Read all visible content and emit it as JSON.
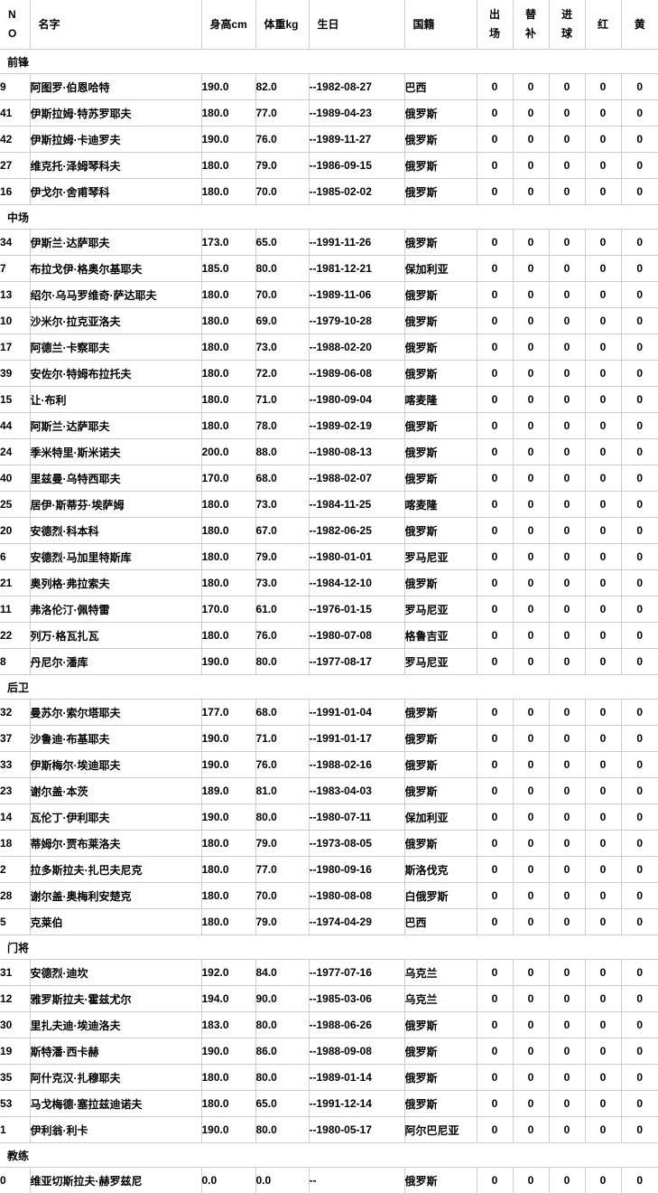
{
  "colors": {
    "background": "#ffffff",
    "text": "#000000",
    "grid_border": "#cccccc"
  },
  "table": {
    "columns": [
      {
        "key": "no",
        "label": "NO",
        "lines": [
          "N",
          "O"
        ],
        "align": "left"
      },
      {
        "key": "name",
        "label": "名字",
        "lines": [
          "名字"
        ],
        "align": "left"
      },
      {
        "key": "height",
        "label": "身高cm",
        "lines": [
          "身高cm"
        ],
        "align": "left"
      },
      {
        "key": "weight",
        "label": "体重kg",
        "lines": [
          "体重kg"
        ],
        "align": "left"
      },
      {
        "key": "birthday",
        "label": "生日",
        "lines": [
          "生日"
        ],
        "align": "left"
      },
      {
        "key": "nationality",
        "label": "国籍",
        "lines": [
          "国籍"
        ],
        "align": "left"
      },
      {
        "key": "appearances",
        "label": "出场",
        "lines": [
          "出",
          "场"
        ],
        "align": "center"
      },
      {
        "key": "substitute",
        "label": "替补",
        "lines": [
          "替",
          "补"
        ],
        "align": "center"
      },
      {
        "key": "goals",
        "label": "进球",
        "lines": [
          "进",
          "球"
        ],
        "align": "center"
      },
      {
        "key": "red",
        "label": "红",
        "lines": [
          "红"
        ],
        "align": "center"
      },
      {
        "key": "yellow",
        "label": "黄",
        "lines": [
          "黄"
        ],
        "align": "center"
      }
    ],
    "sections": [
      {
        "key": "forwards",
        "label": "前锋",
        "rows": [
          [
            "9",
            "阿图罗·伯恩哈特",
            "190.0",
            "82.0",
            "--1982-08-27",
            "巴西",
            "0",
            "0",
            "0",
            "0",
            "0"
          ],
          [
            "41",
            "伊斯拉姆·特苏罗耶夫",
            "180.0",
            "77.0",
            "--1989-04-23",
            "俄罗斯",
            "0",
            "0",
            "0",
            "0",
            "0"
          ],
          [
            "42",
            "伊斯拉姆·卡迪罗夫",
            "190.0",
            "76.0",
            "--1989-11-27",
            "俄罗斯",
            "0",
            "0",
            "0",
            "0",
            "0"
          ],
          [
            "27",
            "维克托·泽姆琴科夫",
            "180.0",
            "79.0",
            "--1986-09-15",
            "俄罗斯",
            "0",
            "0",
            "0",
            "0",
            "0"
          ],
          [
            "16",
            "伊戈尔·舍甫琴科",
            "180.0",
            "70.0",
            "--1985-02-02",
            "俄罗斯",
            "0",
            "0",
            "0",
            "0",
            "0"
          ]
        ]
      },
      {
        "key": "midfielders",
        "label": "中场",
        "rows": [
          [
            "34",
            "伊斯兰·达萨耶夫",
            "173.0",
            "65.0",
            "--1991-11-26",
            "俄罗斯",
            "0",
            "0",
            "0",
            "0",
            "0"
          ],
          [
            "7",
            "布拉戈伊·格奥尔基耶夫",
            "185.0",
            "80.0",
            "--1981-12-21",
            "保加利亚",
            "0",
            "0",
            "0",
            "0",
            "0"
          ],
          [
            "13",
            "绍尔·乌马罗维奇·萨达耶夫",
            "180.0",
            "70.0",
            "--1989-11-06",
            "俄罗斯",
            "0",
            "0",
            "0",
            "0",
            "0"
          ],
          [
            "10",
            "沙米尔·拉克亚洛夫",
            "180.0",
            "69.0",
            "--1979-10-28",
            "俄罗斯",
            "0",
            "0",
            "0",
            "0",
            "0"
          ],
          [
            "17",
            "阿德兰·卡察耶夫",
            "180.0",
            "73.0",
            "--1988-02-20",
            "俄罗斯",
            "0",
            "0",
            "0",
            "0",
            "0"
          ],
          [
            "39",
            "安佐尔·特姆布拉托夫",
            "180.0",
            "72.0",
            "--1989-06-08",
            "俄罗斯",
            "0",
            "0",
            "0",
            "0",
            "0"
          ],
          [
            "15",
            "让·布利",
            "180.0",
            "71.0",
            "--1980-09-04",
            "喀麦隆",
            "0",
            "0",
            "0",
            "0",
            "0"
          ],
          [
            "44",
            "阿斯兰·达萨耶夫",
            "180.0",
            "78.0",
            "--1989-02-19",
            "俄罗斯",
            "0",
            "0",
            "0",
            "0",
            "0"
          ],
          [
            "24",
            "季米特里·斯米诺夫",
            "200.0",
            "88.0",
            "--1980-08-13",
            "俄罗斯",
            "0",
            "0",
            "0",
            "0",
            "0"
          ],
          [
            "40",
            "里兹曼·乌特西耶夫",
            "170.0",
            "68.0",
            "--1988-02-07",
            "俄罗斯",
            "0",
            "0",
            "0",
            "0",
            "0"
          ],
          [
            "25",
            "居伊·斯蒂芬·埃萨姆",
            "180.0",
            "73.0",
            "--1984-11-25",
            "喀麦隆",
            "0",
            "0",
            "0",
            "0",
            "0"
          ],
          [
            "20",
            "安德烈·科本科",
            "180.0",
            "67.0",
            "--1982-06-25",
            "俄罗斯",
            "0",
            "0",
            "0",
            "0",
            "0"
          ],
          [
            "6",
            "安德烈·马加里特斯库",
            "180.0",
            "79.0",
            "--1980-01-01",
            "罗马尼亚",
            "0",
            "0",
            "0",
            "0",
            "0"
          ],
          [
            "21",
            "奥列格·弗拉索夫",
            "180.0",
            "73.0",
            "--1984-12-10",
            "俄罗斯",
            "0",
            "0",
            "0",
            "0",
            "0"
          ],
          [
            "11",
            "弗洛伦汀·佩特雷",
            "170.0",
            "61.0",
            "--1976-01-15",
            "罗马尼亚",
            "0",
            "0",
            "0",
            "0",
            "0"
          ],
          [
            "22",
            "列万·格瓦扎瓦",
            "180.0",
            "76.0",
            "--1980-07-08",
            "格鲁吉亚",
            "0",
            "0",
            "0",
            "0",
            "0"
          ],
          [
            "8",
            "丹尼尔·潘库",
            "190.0",
            "80.0",
            "--1977-08-17",
            "罗马尼亚",
            "0",
            "0",
            "0",
            "0",
            "0"
          ]
        ]
      },
      {
        "key": "defenders",
        "label": "后卫",
        "rows": [
          [
            "32",
            "曼苏尔·索尔塔耶夫",
            "177.0",
            "68.0",
            "--1991-01-04",
            "俄罗斯",
            "0",
            "0",
            "0",
            "0",
            "0"
          ],
          [
            "37",
            "沙鲁迪·布基耶夫",
            "190.0",
            "71.0",
            "--1991-01-17",
            "俄罗斯",
            "0",
            "0",
            "0",
            "0",
            "0"
          ],
          [
            "33",
            "伊斯梅尔·埃迪耶夫",
            "190.0",
            "76.0",
            "--1988-02-16",
            "俄罗斯",
            "0",
            "0",
            "0",
            "0",
            "0"
          ],
          [
            "23",
            "谢尔盖·本茨",
            "189.0",
            "81.0",
            "--1983-04-03",
            "俄罗斯",
            "0",
            "0",
            "0",
            "0",
            "0"
          ],
          [
            "14",
            "瓦伦丁·伊利耶夫",
            "190.0",
            "80.0",
            "--1980-07-11",
            "保加利亚",
            "0",
            "0",
            "0",
            "0",
            "0"
          ],
          [
            "18",
            "蒂姆尔·贾布莱洛夫",
            "180.0",
            "79.0",
            "--1973-08-05",
            "俄罗斯",
            "0",
            "0",
            "0",
            "0",
            "0"
          ],
          [
            "2",
            "拉多斯拉夫·扎巴夫尼克",
            "180.0",
            "77.0",
            "--1980-09-16",
            "斯洛伐克",
            "0",
            "0",
            "0",
            "0",
            "0"
          ],
          [
            "28",
            "谢尔盖·奥梅利安楚克",
            "180.0",
            "70.0",
            "--1980-08-08",
            "白俄罗斯",
            "0",
            "0",
            "0",
            "0",
            "0"
          ],
          [
            "5",
            "克莱伯",
            "180.0",
            "79.0",
            "--1974-04-29",
            "巴西",
            "0",
            "0",
            "0",
            "0",
            "0"
          ]
        ]
      },
      {
        "key": "goalkeepers",
        "label": "门将",
        "rows": [
          [
            "31",
            "安德烈·迪坎",
            "192.0",
            "84.0",
            "--1977-07-16",
            "乌克兰",
            "0",
            "0",
            "0",
            "0",
            "0"
          ],
          [
            "12",
            "雅罗斯拉夫·霍兹尤尔",
            "194.0",
            "90.0",
            "--1985-03-06",
            "乌克兰",
            "0",
            "0",
            "0",
            "0",
            "0"
          ],
          [
            "30",
            "里扎夫迪·埃迪洛夫",
            "183.0",
            "80.0",
            "--1988-06-26",
            "俄罗斯",
            "0",
            "0",
            "0",
            "0",
            "0"
          ],
          [
            "19",
            "斯特潘·西卡赫",
            "190.0",
            "86.0",
            "--1988-09-08",
            "俄罗斯",
            "0",
            "0",
            "0",
            "0",
            "0"
          ],
          [
            "35",
            "阿什克汉·扎穆耶夫",
            "180.0",
            "80.0",
            "--1989-01-14",
            "俄罗斯",
            "0",
            "0",
            "0",
            "0",
            "0"
          ],
          [
            "53",
            "马戈梅德·塞拉兹迪诺夫",
            "180.0",
            "65.0",
            "--1991-12-14",
            "俄罗斯",
            "0",
            "0",
            "0",
            "0",
            "0"
          ],
          [
            "1",
            "伊利翁·利卡",
            "190.0",
            "80.0",
            "--1980-05-17",
            "阿尔巴尼亚",
            "0",
            "0",
            "0",
            "0",
            "0"
          ]
        ]
      },
      {
        "key": "coach",
        "label": "教练",
        "rows": [
          [
            "0",
            "维亚切斯拉夫·赫罗兹尼",
            "0.0",
            "0.0",
            "--",
            "俄罗斯",
            "0",
            "0",
            "0",
            "0",
            "0"
          ]
        ]
      }
    ]
  }
}
